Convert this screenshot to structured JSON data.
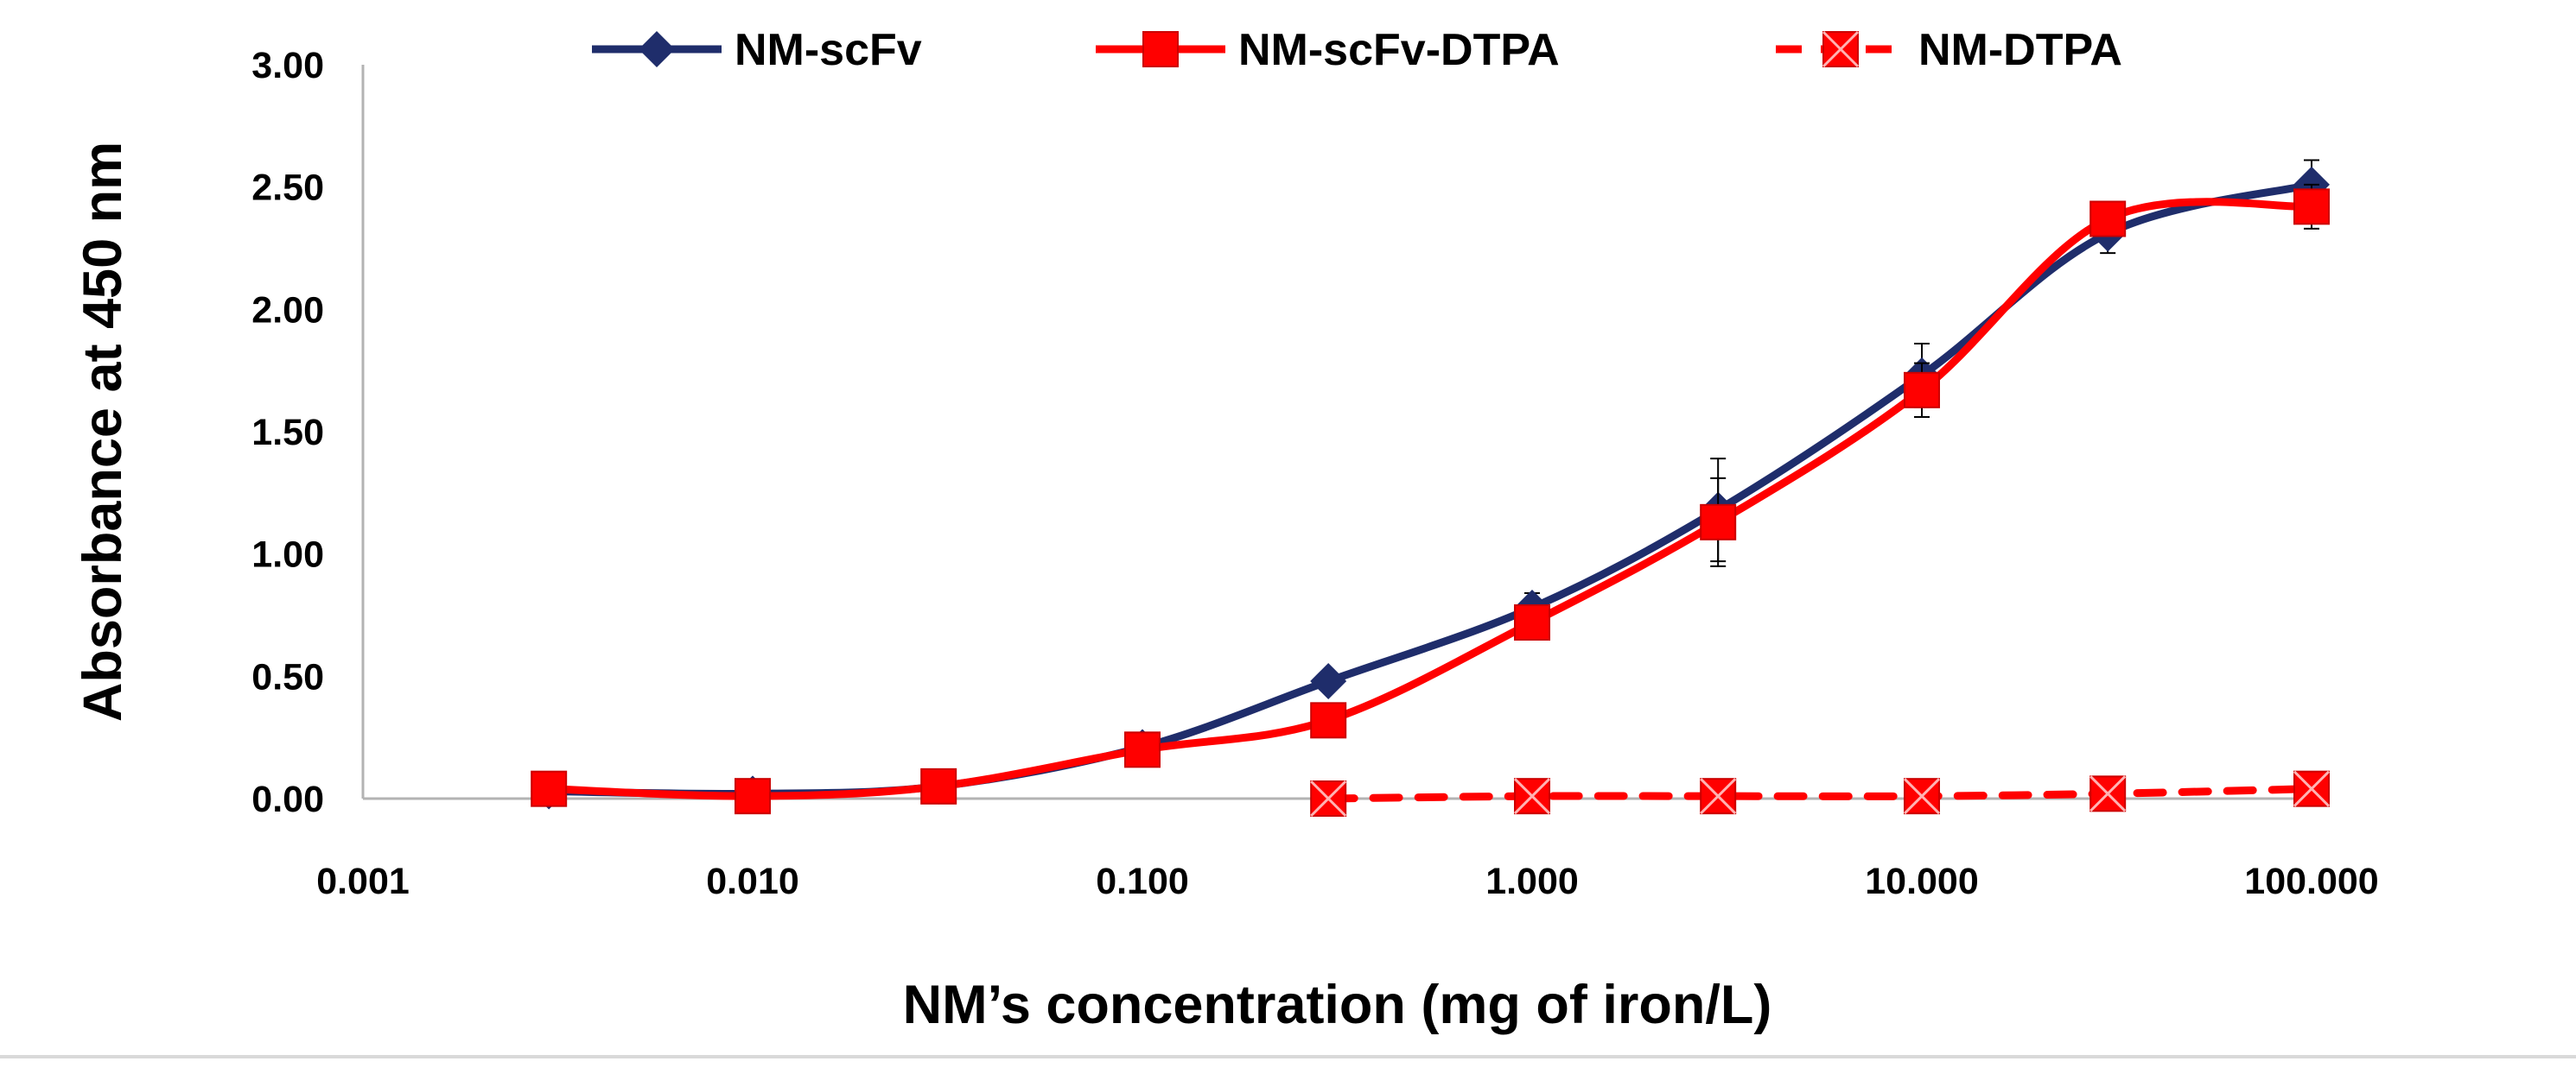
{
  "chart_data": {
    "type": "line",
    "title": "",
    "xlabel": "NM’s concentration (mg of iron/L)",
    "ylabel": "Absorbance at 450 nm",
    "x_scale": "log",
    "xlim": [
      0.001,
      100
    ],
    "ylim": [
      0,
      3
    ],
    "grid": false,
    "legend_position": "top",
    "x_tick_values": [
      0.001,
      0.01,
      0.1,
      1,
      10,
      100
    ],
    "x_tick_labels": [
      "0.001",
      "0.010",
      "0.100",
      "1.000",
      "10.000",
      "100.000"
    ],
    "y_tick_values": [
      0,
      0.5,
      1,
      1.5,
      2,
      2.5,
      3
    ],
    "y_tick_labels": [
      "0.00",
      "0.50",
      "1.00",
      "1.50",
      "2.00",
      "2.50",
      "3.00"
    ],
    "colors": {
      "navy": "#1f2d6b",
      "red": "#ff0000",
      "axis": "#b3b3b3"
    },
    "series": [
      {
        "name": "NM-scFv",
        "color": "#1f2d6b",
        "marker": "diamond",
        "line_style": "solid",
        "x": [
          0.003,
          0.01,
          0.03,
          0.1,
          0.3,
          1,
          3,
          10,
          30,
          100
        ],
        "y": [
          0.03,
          0.02,
          0.05,
          0.21,
          0.48,
          0.78,
          1.18,
          1.73,
          2.31,
          2.51
        ],
        "error": [
          0.01,
          0.01,
          0.01,
          0.04,
          0.03,
          0.06,
          0.21,
          0.13,
          0.08,
          0.1
        ]
      },
      {
        "name": "NM-scFv-DTPA",
        "color": "#ff0000",
        "marker": "square",
        "line_style": "solid",
        "x": [
          0.003,
          0.01,
          0.03,
          0.1,
          0.3,
          1,
          3,
          10,
          30,
          100
        ],
        "y": [
          0.04,
          0.01,
          0.05,
          0.2,
          0.32,
          0.72,
          1.13,
          1.67,
          2.37,
          2.42
        ],
        "error": [
          0.01,
          0.01,
          0.01,
          0.03,
          0.03,
          0.05,
          0.18,
          0.11,
          0.07,
          0.09
        ]
      },
      {
        "name": "NM-DTPA",
        "color": "#ff0000",
        "marker": "square-x",
        "line_style": "dashed",
        "x": [
          0.3,
          1,
          3,
          10,
          30,
          100
        ],
        "y": [
          0.0,
          0.01,
          0.01,
          0.01,
          0.02,
          0.04
        ],
        "error": [
          0.0,
          0.01,
          0.01,
          0.0,
          0.0,
          0.0
        ]
      }
    ]
  }
}
